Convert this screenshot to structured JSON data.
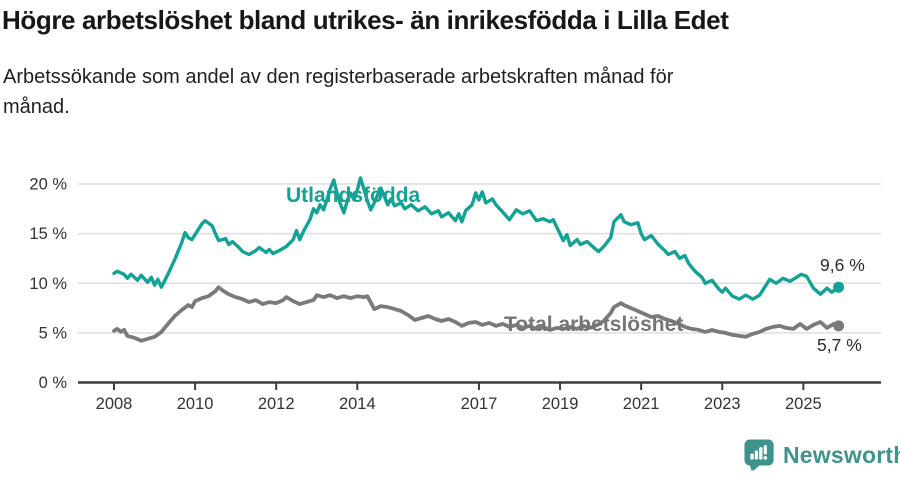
{
  "header": {
    "title": "Högre arbetslöshet bland utrikes- än inrikesfödda i Lilla Edet",
    "subtitle_line1": "Arbetssökande som andel av den registerbaserade arbetskraften månad för",
    "subtitle_line2": "månad."
  },
  "chart_data": {
    "type": "line",
    "title": "Högre arbetslöshet bland utrikes- än inrikesfödda i Lilla Edet",
    "subtitle": "Arbetssökande som andel av den registerbaserade arbetskraften månad för månad.",
    "unit": "%",
    "grid": true,
    "legend_position": "inline-labels",
    "x_axis": {
      "ticks": [
        2008,
        2010,
        2012,
        2014,
        2017,
        2019,
        2021,
        2023,
        2025
      ],
      "range": [
        2007.1,
        2026.9
      ]
    },
    "y_axis": {
      "ticks": [
        {
          "value": 0,
          "label": "0 %"
        },
        {
          "value": 5,
          "label": "5 %"
        },
        {
          "value": 10,
          "label": "10 %"
        },
        {
          "value": 15,
          "label": "15 %"
        },
        {
          "value": 20,
          "label": "20 %"
        }
      ],
      "range": [
        0,
        21
      ]
    },
    "colors": {
      "grid": "#dedede",
      "axis": "#3d3d3d",
      "tick_label": "#333333",
      "annotation": "#2b2b2b"
    },
    "series": [
      {
        "id": "utlandsfodda",
        "label": "Utlandsfödda",
        "color": "#13a296",
        "line_width": 3.4,
        "end_label": "9,6 %",
        "end_value": 9.6,
        "points": [
          [
            2008.0,
            11.0
          ],
          [
            2008.08,
            11.2
          ],
          [
            2008.25,
            10.9
          ],
          [
            2008.33,
            10.5
          ],
          [
            2008.42,
            10.9
          ],
          [
            2008.58,
            10.3
          ],
          [
            2008.67,
            10.8
          ],
          [
            2008.83,
            10.1
          ],
          [
            2008.92,
            10.6
          ],
          [
            2009.0,
            9.8
          ],
          [
            2009.08,
            10.4
          ],
          [
            2009.17,
            9.6
          ],
          [
            2009.33,
            10.9
          ],
          [
            2009.5,
            12.4
          ],
          [
            2009.67,
            14.1
          ],
          [
            2009.75,
            15.1
          ],
          [
            2009.83,
            14.6
          ],
          [
            2009.92,
            14.4
          ],
          [
            2010.0,
            14.9
          ],
          [
            2010.17,
            16.0
          ],
          [
            2010.25,
            16.3
          ],
          [
            2010.42,
            15.8
          ],
          [
            2010.5,
            15.0
          ],
          [
            2010.58,
            14.3
          ],
          [
            2010.75,
            14.5
          ],
          [
            2010.83,
            13.9
          ],
          [
            2010.92,
            14.2
          ],
          [
            2011.08,
            13.6
          ],
          [
            2011.17,
            13.2
          ],
          [
            2011.33,
            12.9
          ],
          [
            2011.5,
            13.3
          ],
          [
            2011.58,
            13.6
          ],
          [
            2011.75,
            13.1
          ],
          [
            2011.83,
            13.4
          ],
          [
            2011.92,
            13.0
          ],
          [
            2012.08,
            13.3
          ],
          [
            2012.25,
            13.7
          ],
          [
            2012.42,
            14.4
          ],
          [
            2012.5,
            15.3
          ],
          [
            2012.58,
            14.4
          ],
          [
            2012.67,
            15.2
          ],
          [
            2012.83,
            16.4
          ],
          [
            2012.92,
            17.5
          ],
          [
            2013.0,
            17.1
          ],
          [
            2013.08,
            17.9
          ],
          [
            2013.17,
            17.4
          ],
          [
            2013.25,
            18.4
          ],
          [
            2013.33,
            19.5
          ],
          [
            2013.42,
            20.4
          ],
          [
            2013.5,
            19.1
          ],
          [
            2013.58,
            18.0
          ],
          [
            2013.67,
            17.1
          ],
          [
            2013.75,
            18.3
          ],
          [
            2013.83,
            19.1
          ],
          [
            2013.92,
            18.4
          ],
          [
            2014.0,
            19.4
          ],
          [
            2014.08,
            20.6
          ],
          [
            2014.17,
            19.4
          ],
          [
            2014.25,
            18.3
          ],
          [
            2014.33,
            17.4
          ],
          [
            2014.42,
            18.1
          ],
          [
            2014.5,
            18.9
          ],
          [
            2014.58,
            19.6
          ],
          [
            2014.67,
            18.7
          ],
          [
            2014.75,
            17.9
          ],
          [
            2014.83,
            18.5
          ],
          [
            2014.92,
            17.8
          ],
          [
            2015.08,
            18.1
          ],
          [
            2015.17,
            17.5
          ],
          [
            2015.33,
            17.9
          ],
          [
            2015.5,
            17.3
          ],
          [
            2015.67,
            17.7
          ],
          [
            2015.83,
            17.0
          ],
          [
            2016.0,
            17.3
          ],
          [
            2016.08,
            16.7
          ],
          [
            2016.25,
            17.1
          ],
          [
            2016.42,
            16.3
          ],
          [
            2016.5,
            17.0
          ],
          [
            2016.58,
            16.2
          ],
          [
            2016.67,
            17.3
          ],
          [
            2016.83,
            17.9
          ],
          [
            2016.92,
            19.1
          ],
          [
            2017.0,
            18.4
          ],
          [
            2017.08,
            19.2
          ],
          [
            2017.17,
            18.1
          ],
          [
            2017.33,
            18.5
          ],
          [
            2017.42,
            17.9
          ],
          [
            2017.58,
            17.2
          ],
          [
            2017.75,
            16.4
          ],
          [
            2017.92,
            17.4
          ],
          [
            2018.08,
            17.0
          ],
          [
            2018.25,
            17.3
          ],
          [
            2018.42,
            16.3
          ],
          [
            2018.58,
            16.5
          ],
          [
            2018.75,
            16.2
          ],
          [
            2018.83,
            16.4
          ],
          [
            2018.95,
            15.4
          ],
          [
            2019.08,
            14.3
          ],
          [
            2019.17,
            14.9
          ],
          [
            2019.25,
            13.8
          ],
          [
            2019.42,
            14.4
          ],
          [
            2019.5,
            13.9
          ],
          [
            2019.67,
            14.2
          ],
          [
            2019.83,
            13.6
          ],
          [
            2019.95,
            13.2
          ],
          [
            2020.08,
            13.7
          ],
          [
            2020.25,
            14.6
          ],
          [
            2020.33,
            16.2
          ],
          [
            2020.5,
            16.9
          ],
          [
            2020.58,
            16.2
          ],
          [
            2020.75,
            15.9
          ],
          [
            2020.92,
            16.1
          ],
          [
            2021.0,
            15.0
          ],
          [
            2021.08,
            14.4
          ],
          [
            2021.25,
            14.8
          ],
          [
            2021.42,
            13.9
          ],
          [
            2021.58,
            13.3
          ],
          [
            2021.67,
            12.9
          ],
          [
            2021.83,
            13.2
          ],
          [
            2021.95,
            12.5
          ],
          [
            2022.08,
            12.8
          ],
          [
            2022.17,
            12.0
          ],
          [
            2022.33,
            11.2
          ],
          [
            2022.5,
            10.6
          ],
          [
            2022.58,
            10.0
          ],
          [
            2022.75,
            10.3
          ],
          [
            2022.92,
            9.4
          ],
          [
            2023.0,
            9.1
          ],
          [
            2023.08,
            9.5
          ],
          [
            2023.25,
            8.7
          ],
          [
            2023.42,
            8.4
          ],
          [
            2023.58,
            8.8
          ],
          [
            2023.75,
            8.4
          ],
          [
            2023.92,
            8.8
          ],
          [
            2024.0,
            9.3
          ],
          [
            2024.17,
            10.4
          ],
          [
            2024.33,
            10.0
          ],
          [
            2024.5,
            10.5
          ],
          [
            2024.67,
            10.2
          ],
          [
            2024.83,
            10.6
          ],
          [
            2024.95,
            10.9
          ],
          [
            2025.08,
            10.7
          ],
          [
            2025.25,
            9.5
          ],
          [
            2025.42,
            8.9
          ],
          [
            2025.58,
            9.5
          ],
          [
            2025.7,
            9.1
          ],
          [
            2025.87,
            9.6
          ]
        ]
      },
      {
        "id": "total",
        "label": "Total arbetslöshet",
        "color": "#7a7a7a",
        "line_width": 3.8,
        "end_label": "5,7 %",
        "end_value": 5.7,
        "points": [
          [
            2008.0,
            5.2
          ],
          [
            2008.08,
            5.4
          ],
          [
            2008.17,
            5.1
          ],
          [
            2008.25,
            5.3
          ],
          [
            2008.33,
            4.7
          ],
          [
            2008.5,
            4.5
          ],
          [
            2008.67,
            4.2
          ],
          [
            2008.83,
            4.4
          ],
          [
            2009.0,
            4.6
          ],
          [
            2009.17,
            5.1
          ],
          [
            2009.33,
            5.9
          ],
          [
            2009.5,
            6.7
          ],
          [
            2009.67,
            7.3
          ],
          [
            2009.83,
            7.8
          ],
          [
            2009.92,
            7.6
          ],
          [
            2010.0,
            8.2
          ],
          [
            2010.17,
            8.5
          ],
          [
            2010.33,
            8.7
          ],
          [
            2010.5,
            9.2
          ],
          [
            2010.58,
            9.6
          ],
          [
            2010.67,
            9.3
          ],
          [
            2010.83,
            8.9
          ],
          [
            2011.0,
            8.6
          ],
          [
            2011.17,
            8.4
          ],
          [
            2011.33,
            8.1
          ],
          [
            2011.5,
            8.3
          ],
          [
            2011.67,
            7.9
          ],
          [
            2011.83,
            8.1
          ],
          [
            2012.0,
            8.0
          ],
          [
            2012.17,
            8.3
          ],
          [
            2012.25,
            8.6
          ],
          [
            2012.42,
            8.2
          ],
          [
            2012.58,
            7.9
          ],
          [
            2012.75,
            8.1
          ],
          [
            2012.92,
            8.3
          ],
          [
            2013.0,
            8.8
          ],
          [
            2013.17,
            8.6
          ],
          [
            2013.33,
            8.8
          ],
          [
            2013.5,
            8.5
          ],
          [
            2013.67,
            8.7
          ],
          [
            2013.83,
            8.5
          ],
          [
            2014.0,
            8.7
          ],
          [
            2014.17,
            8.6
          ],
          [
            2014.25,
            8.7
          ],
          [
            2014.42,
            7.4
          ],
          [
            2014.58,
            7.7
          ],
          [
            2014.75,
            7.6
          ],
          [
            2014.92,
            7.4
          ],
          [
            2015.08,
            7.2
          ],
          [
            2015.25,
            6.8
          ],
          [
            2015.42,
            6.3
          ],
          [
            2015.58,
            6.5
          ],
          [
            2015.75,
            6.7
          ],
          [
            2015.92,
            6.4
          ],
          [
            2016.08,
            6.2
          ],
          [
            2016.25,
            6.4
          ],
          [
            2016.42,
            6.1
          ],
          [
            2016.58,
            5.7
          ],
          [
            2016.75,
            6.0
          ],
          [
            2016.92,
            6.1
          ],
          [
            2017.08,
            5.8
          ],
          [
            2017.25,
            6.0
          ],
          [
            2017.42,
            5.7
          ],
          [
            2017.58,
            5.9
          ],
          [
            2017.75,
            5.6
          ],
          [
            2017.92,
            5.8
          ],
          [
            2018.08,
            5.5
          ],
          [
            2018.25,
            5.7
          ],
          [
            2018.42,
            5.4
          ],
          [
            2018.58,
            5.6
          ],
          [
            2018.75,
            5.3
          ],
          [
            2018.92,
            5.5
          ],
          [
            2019.08,
            5.4
          ],
          [
            2019.25,
            5.6
          ],
          [
            2019.42,
            5.4
          ],
          [
            2019.58,
            5.7
          ],
          [
            2019.75,
            5.5
          ],
          [
            2019.92,
            5.8
          ],
          [
            2020.08,
            6.2
          ],
          [
            2020.25,
            7.0
          ],
          [
            2020.33,
            7.6
          ],
          [
            2020.5,
            8.0
          ],
          [
            2020.58,
            7.8
          ],
          [
            2020.75,
            7.5
          ],
          [
            2020.92,
            7.2
          ],
          [
            2021.08,
            6.9
          ],
          [
            2021.25,
            6.6
          ],
          [
            2021.42,
            6.7
          ],
          [
            2021.58,
            6.4
          ],
          [
            2021.75,
            6.2
          ],
          [
            2021.92,
            5.9
          ],
          [
            2022.08,
            5.6
          ],
          [
            2022.25,
            5.4
          ],
          [
            2022.42,
            5.3
          ],
          [
            2022.58,
            5.1
          ],
          [
            2022.75,
            5.3
          ],
          [
            2022.92,
            5.1
          ],
          [
            2023.08,
            5.0
          ],
          [
            2023.25,
            4.8
          ],
          [
            2023.42,
            4.7
          ],
          [
            2023.58,
            4.6
          ],
          [
            2023.75,
            4.9
          ],
          [
            2023.92,
            5.1
          ],
          [
            2024.08,
            5.4
          ],
          [
            2024.25,
            5.6
          ],
          [
            2024.42,
            5.7
          ],
          [
            2024.58,
            5.5
          ],
          [
            2024.75,
            5.4
          ],
          [
            2024.92,
            5.9
          ],
          [
            2025.08,
            5.4
          ],
          [
            2025.25,
            5.8
          ],
          [
            2025.42,
            6.1
          ],
          [
            2025.58,
            5.5
          ],
          [
            2025.75,
            5.9
          ],
          [
            2025.87,
            5.7
          ]
        ]
      }
    ]
  },
  "footer": {
    "brand": "Newsworthy",
    "brand_color": "#3f938b"
  }
}
